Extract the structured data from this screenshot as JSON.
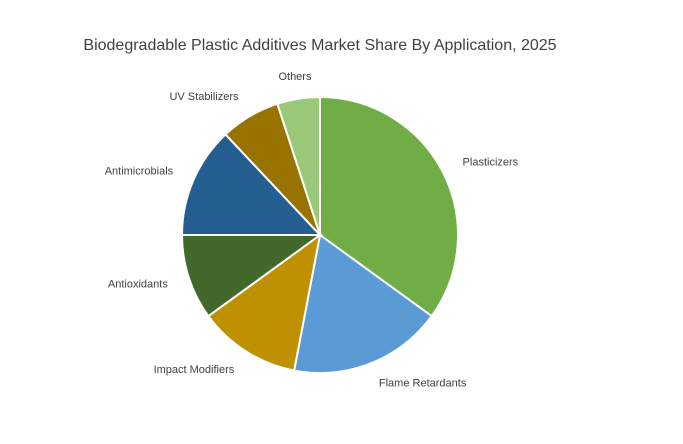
{
  "chart_data": {
    "type": "pie",
    "title": "Biodegradable Plastic Additives Market Share By Application, 2025",
    "categories": [
      "Plasticizers",
      "Flame Retardants",
      "Impact Modifiers",
      "Antioxidants",
      "Antimicrobials",
      "UV Stabilizers",
      "Others"
    ],
    "values": [
      35,
      18,
      12,
      10,
      13,
      7,
      5
    ],
    "colors": [
      "#70ad47",
      "#5b9bd5",
      "#bf9000",
      "#43682b",
      "#255e91",
      "#997300",
      "#9bc97a"
    ]
  }
}
